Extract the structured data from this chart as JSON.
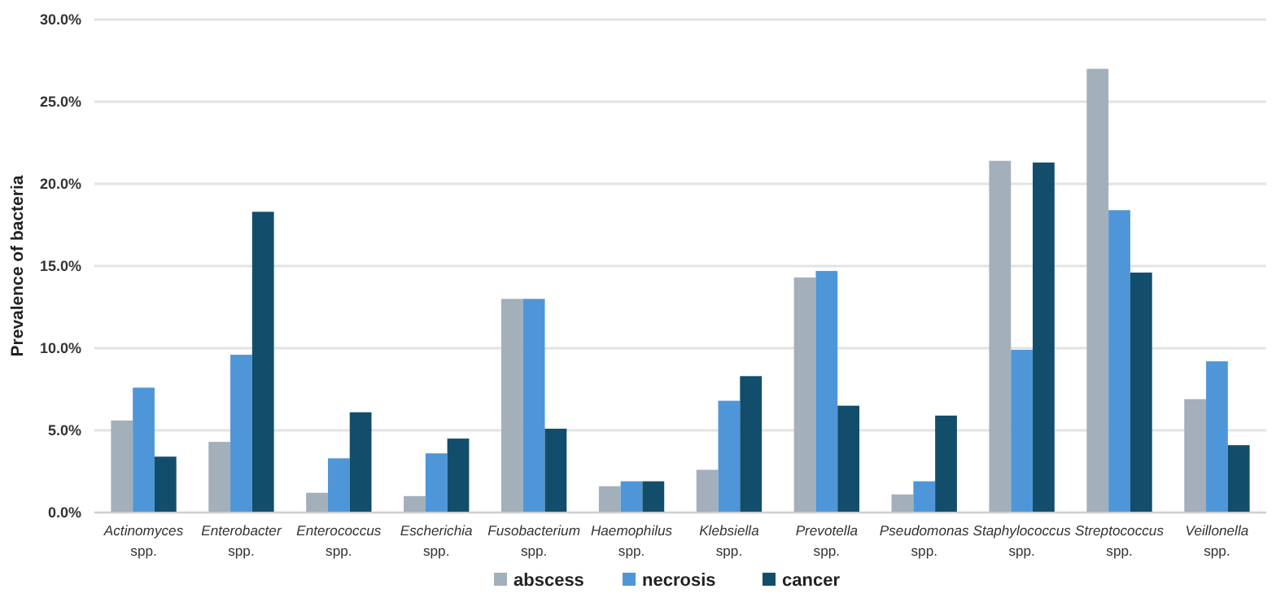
{
  "chart_data": {
    "type": "bar",
    "ylabel": "Prevalence of bacteria",
    "categories": [
      "Actinomyces spp.",
      "Enterobacter spp.",
      "Enterococcus spp.",
      "Escherichia spp.",
      "Fusobacterium spp.",
      "Haemophilus spp.",
      "Klebsiella spp.",
      "Prevotella spp.",
      "Pseudomonas spp.",
      "Staphylococcus spp.",
      "Streptococcus spp.",
      "Veillonella spp."
    ],
    "series": [
      {
        "name": "abscess",
        "color": "#a3afba",
        "values": [
          5.6,
          4.3,
          1.2,
          1.0,
          13.0,
          1.6,
          2.6,
          14.3,
          1.1,
          21.4,
          27.0,
          6.9
        ]
      },
      {
        "name": "necrosis",
        "color": "#4f96d9",
        "values": [
          7.6,
          9.6,
          3.3,
          3.6,
          13.0,
          1.9,
          6.8,
          14.7,
          1.9,
          9.9,
          18.4,
          9.2
        ]
      },
      {
        "name": "cancer",
        "color": "#124e6b",
        "values": [
          3.4,
          18.3,
          6.1,
          4.5,
          5.1,
          1.9,
          8.3,
          6.5,
          5.9,
          21.3,
          14.6,
          4.1
        ]
      }
    ],
    "ylim": [
      0,
      30
    ],
    "yticks": [
      {
        "value": 0,
        "label": "0.0%"
      },
      {
        "value": 5,
        "label": "5.0%"
      },
      {
        "value": 10,
        "label": "10.0%"
      },
      {
        "value": 15,
        "label": "15.0%"
      },
      {
        "value": 20,
        "label": "20.0%"
      },
      {
        "value": 25,
        "label": "25.0%"
      },
      {
        "value": 30,
        "label": "30.0%"
      }
    ],
    "grid": "y",
    "legend": "bottom"
  }
}
